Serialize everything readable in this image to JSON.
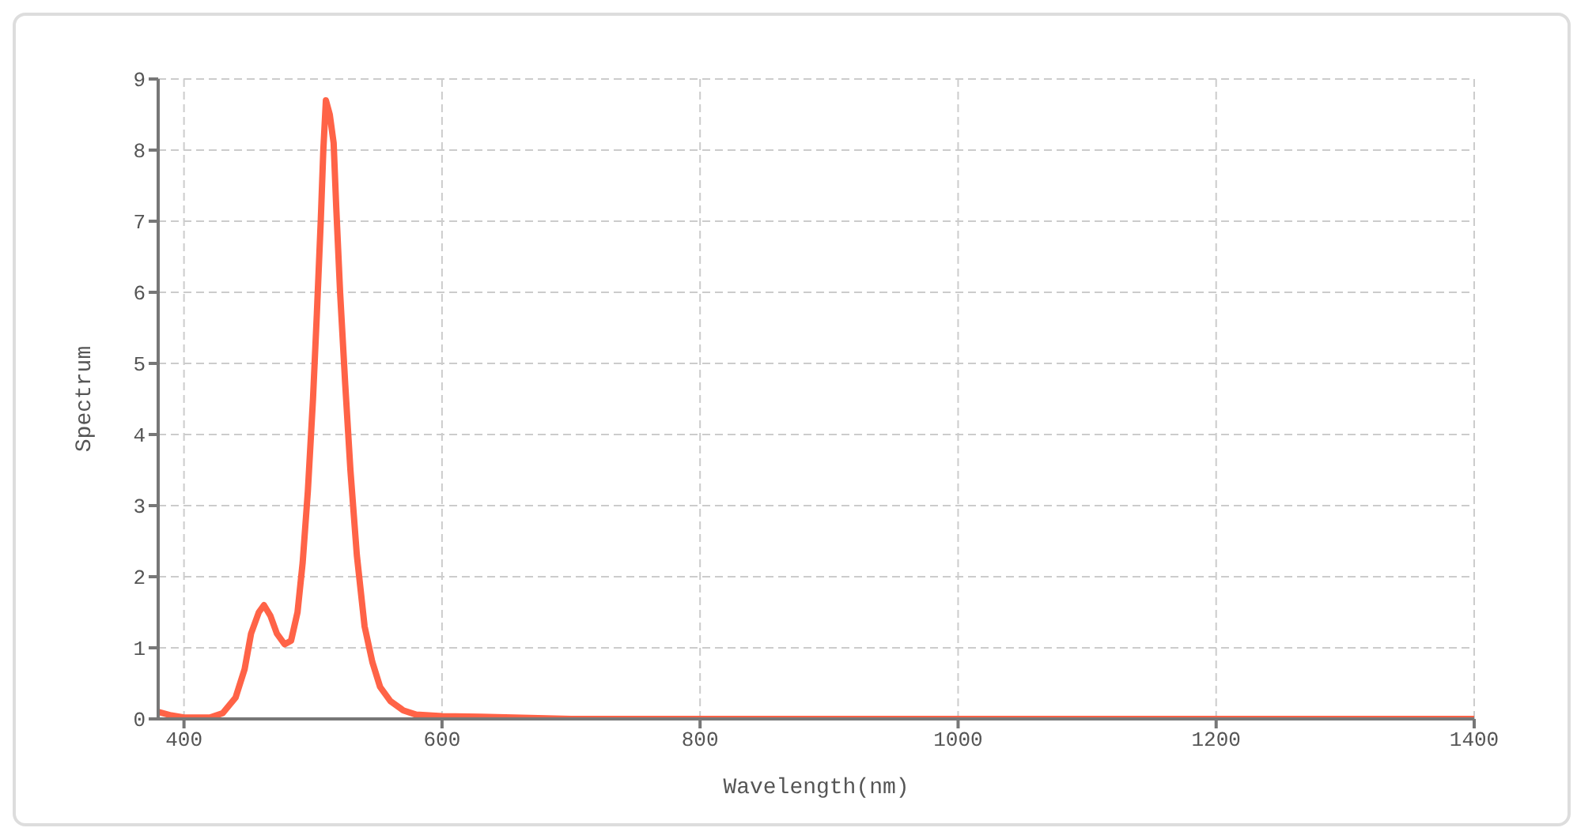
{
  "chart_data": {
    "type": "line",
    "xlabel": "Wavelength(nm)",
    "ylabel": "Spectrum",
    "xlim": [
      380,
      1400
    ],
    "xticks": [
      400,
      600,
      800,
      1000,
      1200,
      1400
    ],
    "ylim": [
      0,
      9
    ],
    "yticks": [
      0,
      1,
      2,
      3,
      4,
      5,
      6,
      7,
      8,
      9
    ],
    "grid": true,
    "marker": "none",
    "line_style": "solid",
    "legend": false,
    "x": [
      380,
      390,
      400,
      420,
      430,
      440,
      447,
      452,
      458,
      462,
      467,
      472,
      478,
      483,
      488,
      492,
      496,
      500,
      503,
      506,
      508,
      510,
      513,
      516,
      518,
      521,
      525,
      529,
      534,
      540,
      546,
      552,
      560,
      570,
      580,
      600,
      630,
      700,
      1400
    ],
    "series": [
      {
        "color": "#ff6347",
        "values": [
          0.1,
          0.05,
          0.02,
          0.02,
          0.08,
          0.3,
          0.7,
          1.2,
          1.5,
          1.6,
          1.45,
          1.2,
          1.05,
          1.1,
          1.5,
          2.2,
          3.2,
          4.5,
          5.7,
          7,
          8,
          8.7,
          8.5,
          8.1,
          7.2,
          6,
          4.7,
          3.5,
          2.3,
          1.3,
          0.8,
          0.45,
          0.25,
          0.12,
          0.06,
          0.04,
          0.03,
          0,
          0
        ]
      }
    ]
  }
}
